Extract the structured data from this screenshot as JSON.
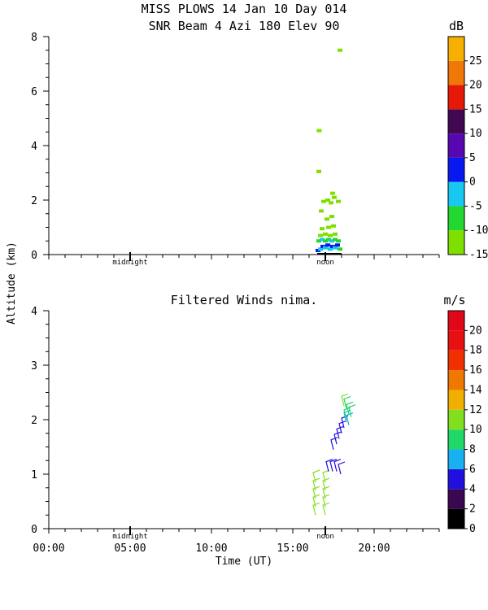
{
  "figure": {
    "title_line1": "MISS PLOWS  14 Jan 10 Day 014",
    "title_line2": "SNR Beam 4 Azi 180 Elev 90",
    "ylabel": "Altitude (km)",
    "xlabel": "Time (UT)",
    "midnight_label": "midnight",
    "noon_label": "noon",
    "xtick_labels": [
      "00:00",
      "05:00",
      "10:00",
      "15:00",
      "20:00"
    ]
  },
  "chart_data": [
    {
      "type": "heatmap",
      "title": "SNR Beam 4 Azi 180 Elev 90",
      "ylabel": "Altitude (km)",
      "xlabel": "Time (UT)",
      "xlim": [
        0,
        24
      ],
      "ylim": [
        0,
        8
      ],
      "yticks": [
        0,
        2,
        4,
        6,
        8
      ],
      "colorbar": {
        "unit": "dB",
        "tick_labels": [
          "-15",
          "-10",
          "-5",
          "0",
          "5",
          "10",
          "15",
          "20",
          "25"
        ],
        "tick_values": [
          -15,
          -10,
          -5,
          0,
          5,
          10,
          15,
          20,
          25
        ],
        "range": [
          -15,
          30
        ],
        "colors": [
          "#7fe000",
          "#22d830",
          "#18c8f0",
          "#0818f0",
          "#5808b0",
          "#400850",
          "#e81808",
          "#f07808",
          "#f8b000"
        ]
      },
      "points": [
        {
          "t": 16.55,
          "alt": 0.15,
          "snr": 2
        },
        {
          "t": 16.7,
          "alt": 0.2,
          "snr": -2
        },
        {
          "t": 16.85,
          "alt": 0.3,
          "snr": 3
        },
        {
          "t": 17.0,
          "alt": 0.25,
          "snr": -3
        },
        {
          "t": 17.15,
          "alt": 0.35,
          "snr": 1
        },
        {
          "t": 17.3,
          "alt": 0.2,
          "snr": -4
        },
        {
          "t": 17.45,
          "alt": 0.3,
          "snr": 2
        },
        {
          "t": 17.6,
          "alt": 0.25,
          "snr": -1
        },
        {
          "t": 17.75,
          "alt": 0.35,
          "snr": 0
        },
        {
          "t": 17.9,
          "alt": 0.2,
          "snr": -6
        },
        {
          "t": 16.6,
          "alt": 0.5,
          "snr": -7
        },
        {
          "t": 16.8,
          "alt": 0.55,
          "snr": -4
        },
        {
          "t": 17.0,
          "alt": 0.5,
          "snr": -6
        },
        {
          "t": 17.2,
          "alt": 0.55,
          "snr": -8
        },
        {
          "t": 17.4,
          "alt": 0.5,
          "snr": -5
        },
        {
          "t": 17.6,
          "alt": 0.55,
          "snr": -7
        },
        {
          "t": 17.8,
          "alt": 0.5,
          "snr": -9
        },
        {
          "t": 16.7,
          "alt": 0.7,
          "snr": -11
        },
        {
          "t": 17.0,
          "alt": 0.75,
          "snr": -12
        },
        {
          "t": 17.3,
          "alt": 0.7,
          "snr": -11
        },
        {
          "t": 17.6,
          "alt": 0.75,
          "snr": -12
        },
        {
          "t": 16.8,
          "alt": 0.95,
          "snr": -12
        },
        {
          "t": 17.2,
          "alt": 1.0,
          "snr": -13
        },
        {
          "t": 17.5,
          "alt": 1.05,
          "snr": -12
        },
        {
          "t": 17.1,
          "alt": 1.3,
          "snr": -13
        },
        {
          "t": 17.4,
          "alt": 1.4,
          "snr": -13
        },
        {
          "t": 16.75,
          "alt": 1.6,
          "snr": -13
        },
        {
          "t": 16.9,
          "alt": 1.95,
          "snr": -12
        },
        {
          "t": 17.15,
          "alt": 2.0,
          "snr": -13
        },
        {
          "t": 17.35,
          "alt": 1.9,
          "snr": -12
        },
        {
          "t": 17.55,
          "alt": 2.1,
          "snr": -13
        },
        {
          "t": 17.8,
          "alt": 1.95,
          "snr": -12
        },
        {
          "t": 17.45,
          "alt": 2.25,
          "snr": -13
        },
        {
          "t": 16.6,
          "alt": 3.05,
          "snr": -12
        },
        {
          "t": 16.62,
          "alt": 4.55,
          "snr": -12
        },
        {
          "t": 17.9,
          "alt": 7.5,
          "snr": -12
        }
      ]
    },
    {
      "type": "scatter",
      "title": "Filtered Winds nima.",
      "ylabel": "Altitude (km)",
      "xlabel": "Time (UT)",
      "xlim": [
        0,
        24
      ],
      "ylim": [
        0,
        4
      ],
      "yticks": [
        0,
        1,
        2,
        3,
        4
      ],
      "colorbar": {
        "unit": "m/s",
        "tick_labels": [
          "0",
          "2",
          "4",
          "6",
          "8",
          "10",
          "12",
          "14",
          "16",
          "18",
          "20"
        ],
        "tick_values": [
          0,
          2,
          4,
          6,
          8,
          10,
          12,
          14,
          16,
          18,
          20
        ],
        "range": [
          0,
          22
        ],
        "colors": [
          "#000000",
          "#3a0850",
          "#2010e0",
          "#18b0f0",
          "#20d868",
          "#80e020",
          "#f0b000",
          "#f07800",
          "#f03000",
          "#e81010",
          "#e00818"
        ]
      },
      "barbs": [
        {
          "t": 16.4,
          "alt": 0.25,
          "speed": 10
        },
        {
          "t": 16.4,
          "alt": 0.4,
          "speed": 10
        },
        {
          "t": 16.4,
          "alt": 0.55,
          "speed": 10
        },
        {
          "t": 16.4,
          "alt": 0.7,
          "speed": 10
        },
        {
          "t": 16.4,
          "alt": 0.85,
          "speed": 10
        },
        {
          "t": 17.0,
          "alt": 0.25,
          "speed": 10
        },
        {
          "t": 17.0,
          "alt": 0.4,
          "speed": 10
        },
        {
          "t": 17.0,
          "alt": 0.55,
          "speed": 10
        },
        {
          "t": 17.0,
          "alt": 0.7,
          "speed": 10
        },
        {
          "t": 17.0,
          "alt": 0.85,
          "speed": 10
        },
        {
          "t": 17.2,
          "alt": 1.05,
          "speed": 4
        },
        {
          "t": 17.45,
          "alt": 1.05,
          "speed": 4
        },
        {
          "t": 17.7,
          "alt": 1.05,
          "speed": 4
        },
        {
          "t": 17.95,
          "alt": 1.0,
          "speed": 4
        },
        {
          "t": 17.5,
          "alt": 1.45,
          "speed": 4
        },
        {
          "t": 17.7,
          "alt": 1.55,
          "speed": 4
        },
        {
          "t": 17.85,
          "alt": 1.65,
          "speed": 4
        },
        {
          "t": 18.0,
          "alt": 1.75,
          "speed": 4
        },
        {
          "t": 18.15,
          "alt": 1.85,
          "speed": 4
        },
        {
          "t": 18.3,
          "alt": 1.95,
          "speed": 6
        },
        {
          "t": 18.45,
          "alt": 1.9,
          "speed": 6
        },
        {
          "t": 18.3,
          "alt": 2.0,
          "speed": 8
        },
        {
          "t": 18.45,
          "alt": 2.1,
          "speed": 8
        },
        {
          "t": 18.6,
          "alt": 2.05,
          "speed": 8
        },
        {
          "t": 18.3,
          "alt": 2.2,
          "speed": 8
        },
        {
          "t": 18.15,
          "alt": 2.25,
          "speed": 10
        }
      ]
    }
  ]
}
